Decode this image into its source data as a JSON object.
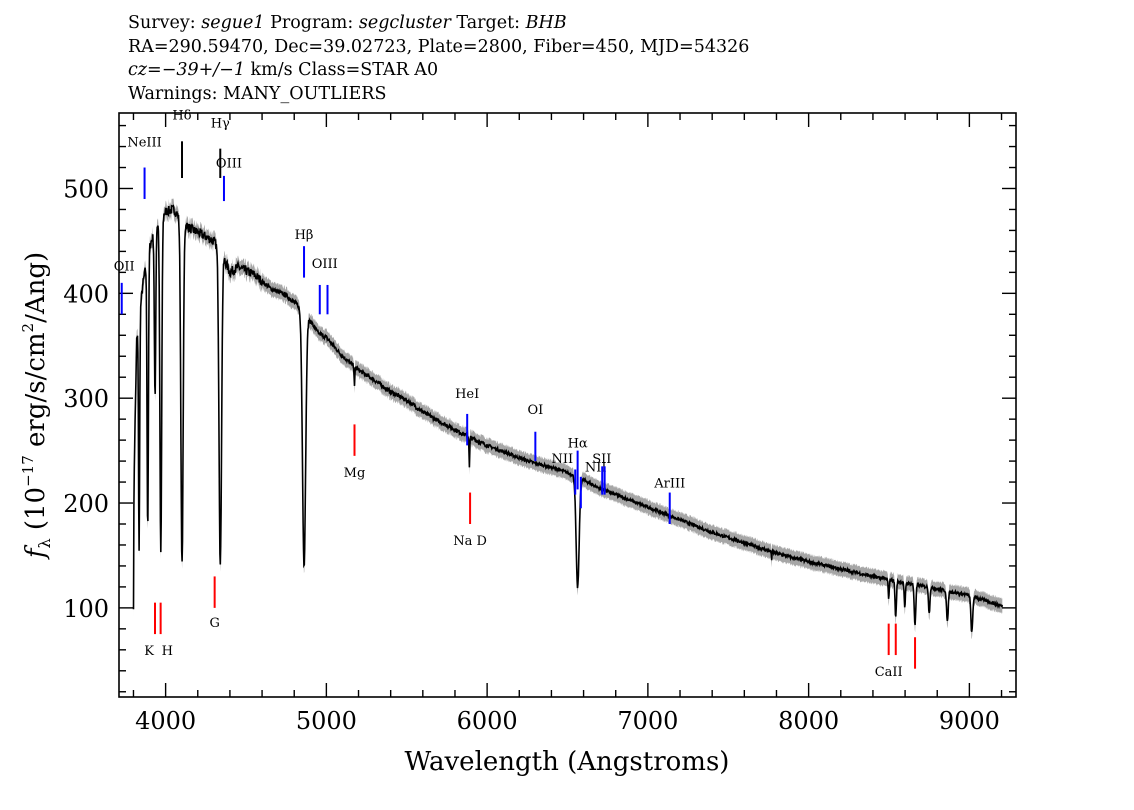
{
  "header": {
    "line1": {
      "survey_label": "Survey:",
      "survey": "segue1",
      "program_label": "Program:",
      "program": "segcluster",
      "target_label": "Target:",
      "target": "BHB"
    },
    "line2": "RA=290.59470, Dec=39.02723, Plate=2800, Fiber=450, MJD=54326",
    "line3": {
      "cz_label": "cz",
      "cz_value": "=−39+/−1",
      "rest": " km/s Class=STAR A0"
    },
    "line4": "Warnings: MANY_OUTLIERS"
  },
  "chart_data": {
    "type": "line",
    "xlabel": "Wavelength (Angstroms)",
    "ylabel_prefix": "f",
    "ylabel_sub": "λ",
    "ylabel_units_a": " (10",
    "ylabel_exp": "−17",
    "ylabel_units_b": " erg/s/cm",
    "ylabel_exp2": "2",
    "ylabel_units_c": "/Ang)",
    "xlim": [
      3710,
      9290
    ],
    "ylim": [
      15,
      572
    ],
    "x_ticks": [
      4000,
      5000,
      6000,
      7000,
      8000,
      9000
    ],
    "y_ticks": [
      100,
      200,
      300,
      400,
      500
    ],
    "colors": {
      "spectrum": "#000000",
      "error_band": "#a6a6a6",
      "emission": "#0000ff",
      "absorption": "#ff0000"
    },
    "continuum": [
      [
        3800,
        200
      ],
      [
        3820,
        355
      ],
      [
        3860,
        410
      ],
      [
        3900,
        445
      ],
      [
        3960,
        470
      ],
      [
        4000,
        478
      ],
      [
        4050,
        480
      ],
      [
        4100,
        470
      ],
      [
        4150,
        462
      ],
      [
        4200,
        458
      ],
      [
        4300,
        450
      ],
      [
        4350,
        438
      ],
      [
        4400,
        420
      ],
      [
        4450,
        425
      ],
      [
        4550,
        418
      ],
      [
        4650,
        405
      ],
      [
        4750,
        398
      ],
      [
        4850,
        385
      ],
      [
        4950,
        362
      ],
      [
        5000,
        358
      ],
      [
        5100,
        340
      ],
      [
        5200,
        327
      ],
      [
        5300,
        317
      ],
      [
        5400,
        306
      ],
      [
        5500,
        298
      ],
      [
        5600,
        287
      ],
      [
        5700,
        278
      ],
      [
        5800,
        270
      ],
      [
        5900,
        262
      ],
      [
        6000,
        255
      ],
      [
        6100,
        249
      ],
      [
        6200,
        243
      ],
      [
        6300,
        238
      ],
      [
        6400,
        234
      ],
      [
        6500,
        229
      ],
      [
        6600,
        222
      ],
      [
        6700,
        214
      ],
      [
        6800,
        208
      ],
      [
        6900,
        202
      ],
      [
        7000,
        196
      ],
      [
        7100,
        190
      ],
      [
        7200,
        184
      ],
      [
        7400,
        172
      ],
      [
        7600,
        162
      ],
      [
        7800,
        152
      ],
      [
        8000,
        144
      ],
      [
        8200,
        137
      ],
      [
        8400,
        130
      ],
      [
        8600,
        124
      ],
      [
        8800,
        118
      ],
      [
        9000,
        112
      ],
      [
        9200,
        102
      ]
    ],
    "absorption_features": [
      {
        "center": 3797,
        "depth": 170,
        "width": 4
      },
      {
        "center": 3835,
        "depth": 220,
        "width": 5
      },
      {
        "center": 3889,
        "depth": 260,
        "width": 6
      },
      {
        "center": 3934,
        "depth": 160,
        "width": 6
      },
      {
        "center": 3970,
        "depth": 320,
        "width": 8
      },
      {
        "center": 4102,
        "depth": 330,
        "width": 10
      },
      {
        "center": 4340,
        "depth": 300,
        "width": 11
      },
      {
        "center": 4861,
        "depth": 242,
        "width": 14
      },
      {
        "center": 5175,
        "depth": 20,
        "width": 3
      },
      {
        "center": 5890,
        "depth": 30,
        "width": 3
      },
      {
        "center": 6563,
        "depth": 105,
        "width": 13
      },
      {
        "center": 7770,
        "depth": 8,
        "width": 2
      },
      {
        "center": 8498,
        "depth": 20,
        "width": 4
      },
      {
        "center": 8542,
        "depth": 35,
        "width": 6
      },
      {
        "center": 8598,
        "depth": 25,
        "width": 5
      },
      {
        "center": 8662,
        "depth": 38,
        "width": 7
      },
      {
        "center": 8750,
        "depth": 25,
        "width": 6
      },
      {
        "center": 8863,
        "depth": 30,
        "width": 7
      },
      {
        "center": 9015,
        "depth": 35,
        "width": 8
      }
    ],
    "line_markers": [
      {
        "label": "NeIII",
        "x": 3869,
        "color": "blue",
        "y1": 490,
        "y2": 520,
        "label_y": 540
      },
      {
        "label": "Hδ",
        "x": 4102,
        "color": "black",
        "y1": 510,
        "y2": 545,
        "label_y": 566
      },
      {
        "label": "Hγ",
        "x": 4340,
        "color": "black",
        "y1": 510,
        "y2": 538,
        "label_y": 558
      },
      {
        "label": "OIII",
        "x": 4363,
        "color": "blue",
        "y1": 488,
        "y2": 512,
        "label_y": 520
      },
      {
        "label": "Hβ",
        "x": 4861,
        "color": "blue",
        "y1": 415,
        "y2": 445,
        "label_y": 452
      },
      {
        "label": "OIII",
        "x": 4959,
        "color": "blue",
        "y1": 380,
        "y2": 408,
        "label_y": 424
      },
      {
        "label": "",
        "x": 5007,
        "color": "blue",
        "y1": 380,
        "y2": 408,
        "label_y": 0
      },
      {
        "label": "HeI",
        "x": 5876,
        "color": "blue",
        "y1": 255,
        "y2": 285,
        "label_y": 300
      },
      {
        "label": "OI",
        "x": 6300,
        "color": "blue",
        "y1": 240,
        "y2": 268,
        "label_y": 285
      },
      {
        "label": "NII",
        "x": 6548,
        "color": "blue",
        "y1": 208,
        "y2": 232,
        "label_y": 238
      },
      {
        "label": "Hα",
        "x": 6563,
        "color": "blue",
        "y1": 213,
        "y2": 250,
        "label_y": 253
      },
      {
        "label": "NII",
        "x": 6583,
        "color": "blue",
        "y1": 195,
        "y2": 225,
        "label_y": 230
      },
      {
        "label": "SII",
        "x": 6716,
        "color": "blue",
        "y1": 208,
        "y2": 235,
        "label_y": 238
      },
      {
        "label": "",
        "x": 6731,
        "color": "blue",
        "y1": 208,
        "y2": 235,
        "label_y": 0
      },
      {
        "label": "ArIII",
        "x": 7136,
        "color": "blue",
        "y1": 180,
        "y2": 210,
        "label_y": 215
      },
      {
        "label": "Mg",
        "x": 5175,
        "color": "red",
        "y1": 245,
        "y2": 275,
        "label_y": 225
      },
      {
        "label": "Na D",
        "x": 5894,
        "color": "red",
        "y1": 180,
        "y2": 210,
        "label_y": 160
      },
      {
        "label": "G",
        "x": 4305,
        "color": "red",
        "y1": 100,
        "y2": 130,
        "label_y": 82
      },
      {
        "label": "K",
        "x": 3934,
        "color": "red",
        "y1": 75,
        "y2": 105,
        "label_y": 55
      },
      {
        "label": "H",
        "x": 3969,
        "color": "red",
        "y1": 75,
        "y2": 105,
        "label_y": 55
      },
      {
        "label": "CaII",
        "x": 8498,
        "color": "red",
        "y1": 55,
        "y2": 85,
        "label_y": 35
      },
      {
        "label": "",
        "x": 8542,
        "color": "red",
        "y1": 55,
        "y2": 85,
        "label_y": 0
      },
      {
        "label": "",
        "x": 8662,
        "color": "red",
        "y1": 42,
        "y2": 72,
        "label_y": 0
      },
      {
        "label": "OII",
        "x": 3727,
        "color": "blue",
        "y1": 380,
        "y2": 410,
        "label_y": 422
      }
    ]
  }
}
